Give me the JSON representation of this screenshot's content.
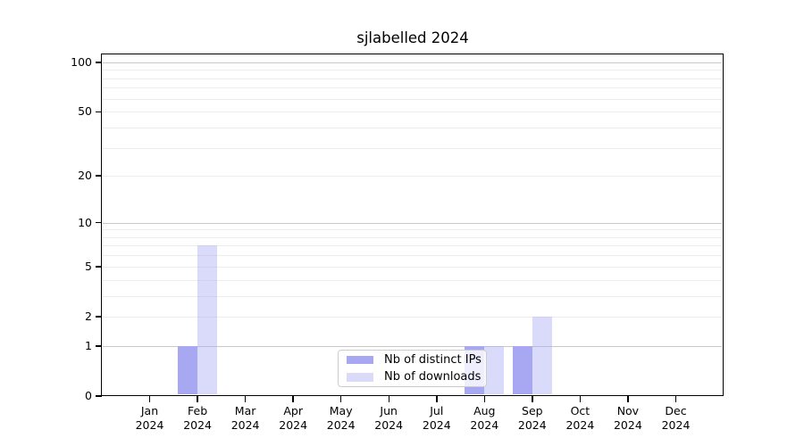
{
  "title": "sjlabelled 2024",
  "chart_data": {
    "type": "bar",
    "title": "sjlabelled 2024",
    "xlabel": "",
    "ylabel": "",
    "year_label": "2024",
    "categories": [
      "Jan",
      "Feb",
      "Mar",
      "Apr",
      "May",
      "Jun",
      "Jul",
      "Aug",
      "Sep",
      "Oct",
      "Nov",
      "Dec"
    ],
    "series": [
      {
        "name": "Nb of distinct IPs",
        "color": "#a8a8f2",
        "values": [
          0,
          1,
          0,
          0,
          0,
          0,
          0,
          1,
          1,
          0,
          0,
          0
        ]
      },
      {
        "name": "Nb of downloads",
        "color": "#dbdbf8",
        "color_rgba": "rgba(168,168,242,0.42)",
        "values": [
          0,
          7,
          0,
          0,
          0,
          0,
          0,
          1,
          2,
          0,
          0,
          0
        ]
      }
    ],
    "yscale": "log1p",
    "ylim": [
      0,
      113
    ],
    "yticks": [
      0,
      1,
      2,
      5,
      10,
      20,
      50,
      100
    ],
    "major_gridlines": [
      1,
      10,
      100
    ],
    "minor_gridlines": [
      2,
      3,
      4,
      5,
      6,
      7,
      8,
      9,
      20,
      30,
      40,
      50,
      60,
      70,
      80,
      90
    ],
    "grid": "on",
    "legend_position": "bottom-center",
    "axis_color": "#000000",
    "major_grid_color": "#c8c8c8",
    "minor_grid_color": "#ececec"
  }
}
